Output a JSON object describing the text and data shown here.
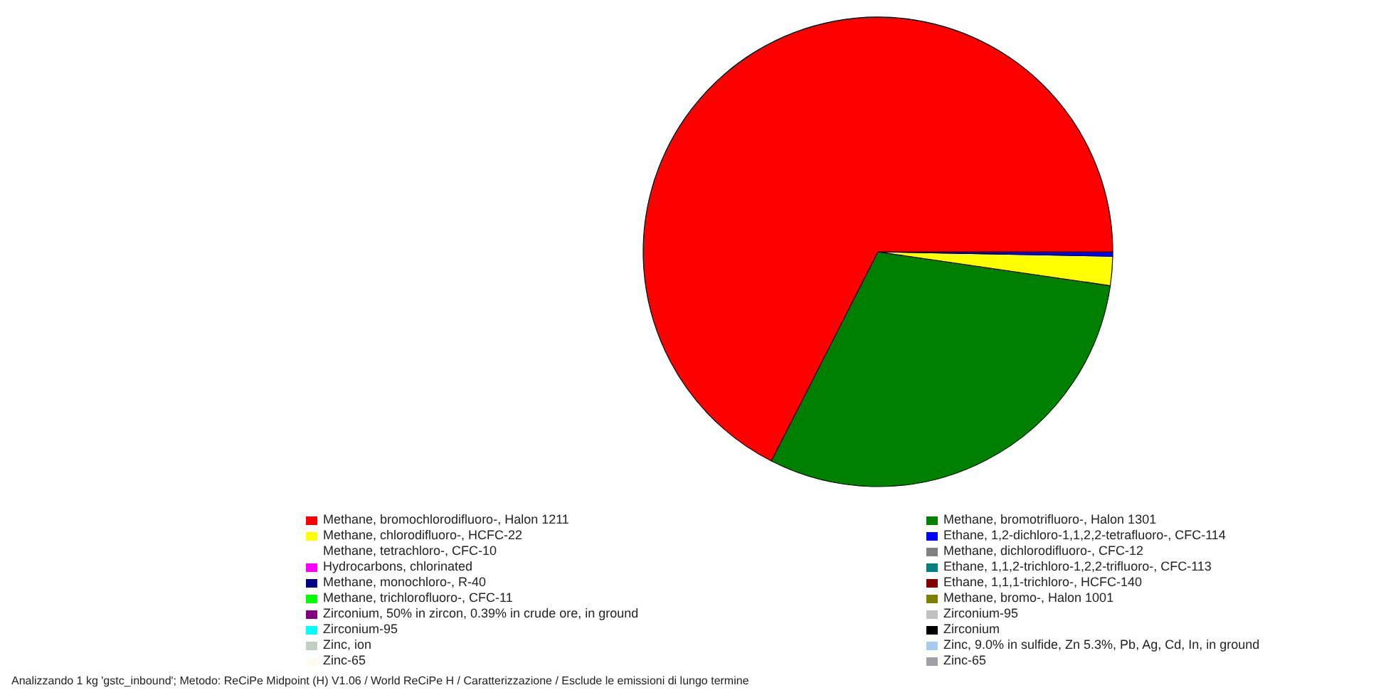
{
  "chart_data": {
    "type": "pie",
    "categories": [
      "Methane, bromochlorodifluoro-, Halon 1211",
      "Methane, bromotrifluoro-, Halon 1301",
      "Methane, chlorodifluoro-, HCFC-22",
      "Ethane, 1,2-dichloro-1,1,2,2-tetrafluoro-, CFC-114",
      "Methane, tetrachloro-, CFC-10",
      "Methane, dichlorodifluoro-, CFC-12",
      "Hydrocarbons, chlorinated",
      "Ethane, 1,1,2-trichloro-1,2,2-trifluoro-, CFC-113",
      "Methane, monochloro-, R-40",
      "Ethane, 1,1,1-trichloro-, HCFC-140",
      "Methane, trichlorofluoro-, CFC-11",
      "Methane, bromo-, Halon 1001",
      "Zirconium, 50% in zircon, 0.39% in crude ore, in ground",
      "Zirconium-95",
      "Zirconium-95",
      "Zirconium",
      "Zinc, ion",
      "Zinc, 9.0% in sulfide, Zn 5.3%, Pb, Ag, Cd, In, in ground",
      "Zinc-65",
      "Zinc-65"
    ],
    "values": [
      67.5,
      30.2,
      2.0,
      0.3,
      0,
      0,
      0,
      0,
      0,
      0,
      0,
      0,
      0,
      0,
      0,
      0,
      0,
      0,
      0,
      0
    ],
    "colors": [
      "#ff0000",
      "#008000",
      "#ffff00",
      "#0000ff",
      "#ffffff",
      "#808080",
      "#ff00ff",
      "#008080",
      "#000080",
      "#800000",
      "#00ff00",
      "#808000",
      "#800080",
      "#c0c0c0",
      "#00ffff",
      "#000000",
      "#c0d0c0",
      "#a6caf0",
      "#fffbf0",
      "#a0a0a4"
    ],
    "legend": "bottom",
    "annotations": [
      "Analizzando 1 kg 'gstc_inbound';  Metodo: ReCiPe Midpoint (H) V1.06 / World ReCiPe H / Caratterizzazione / Esclude le emissioni di lungo termine"
    ]
  }
}
